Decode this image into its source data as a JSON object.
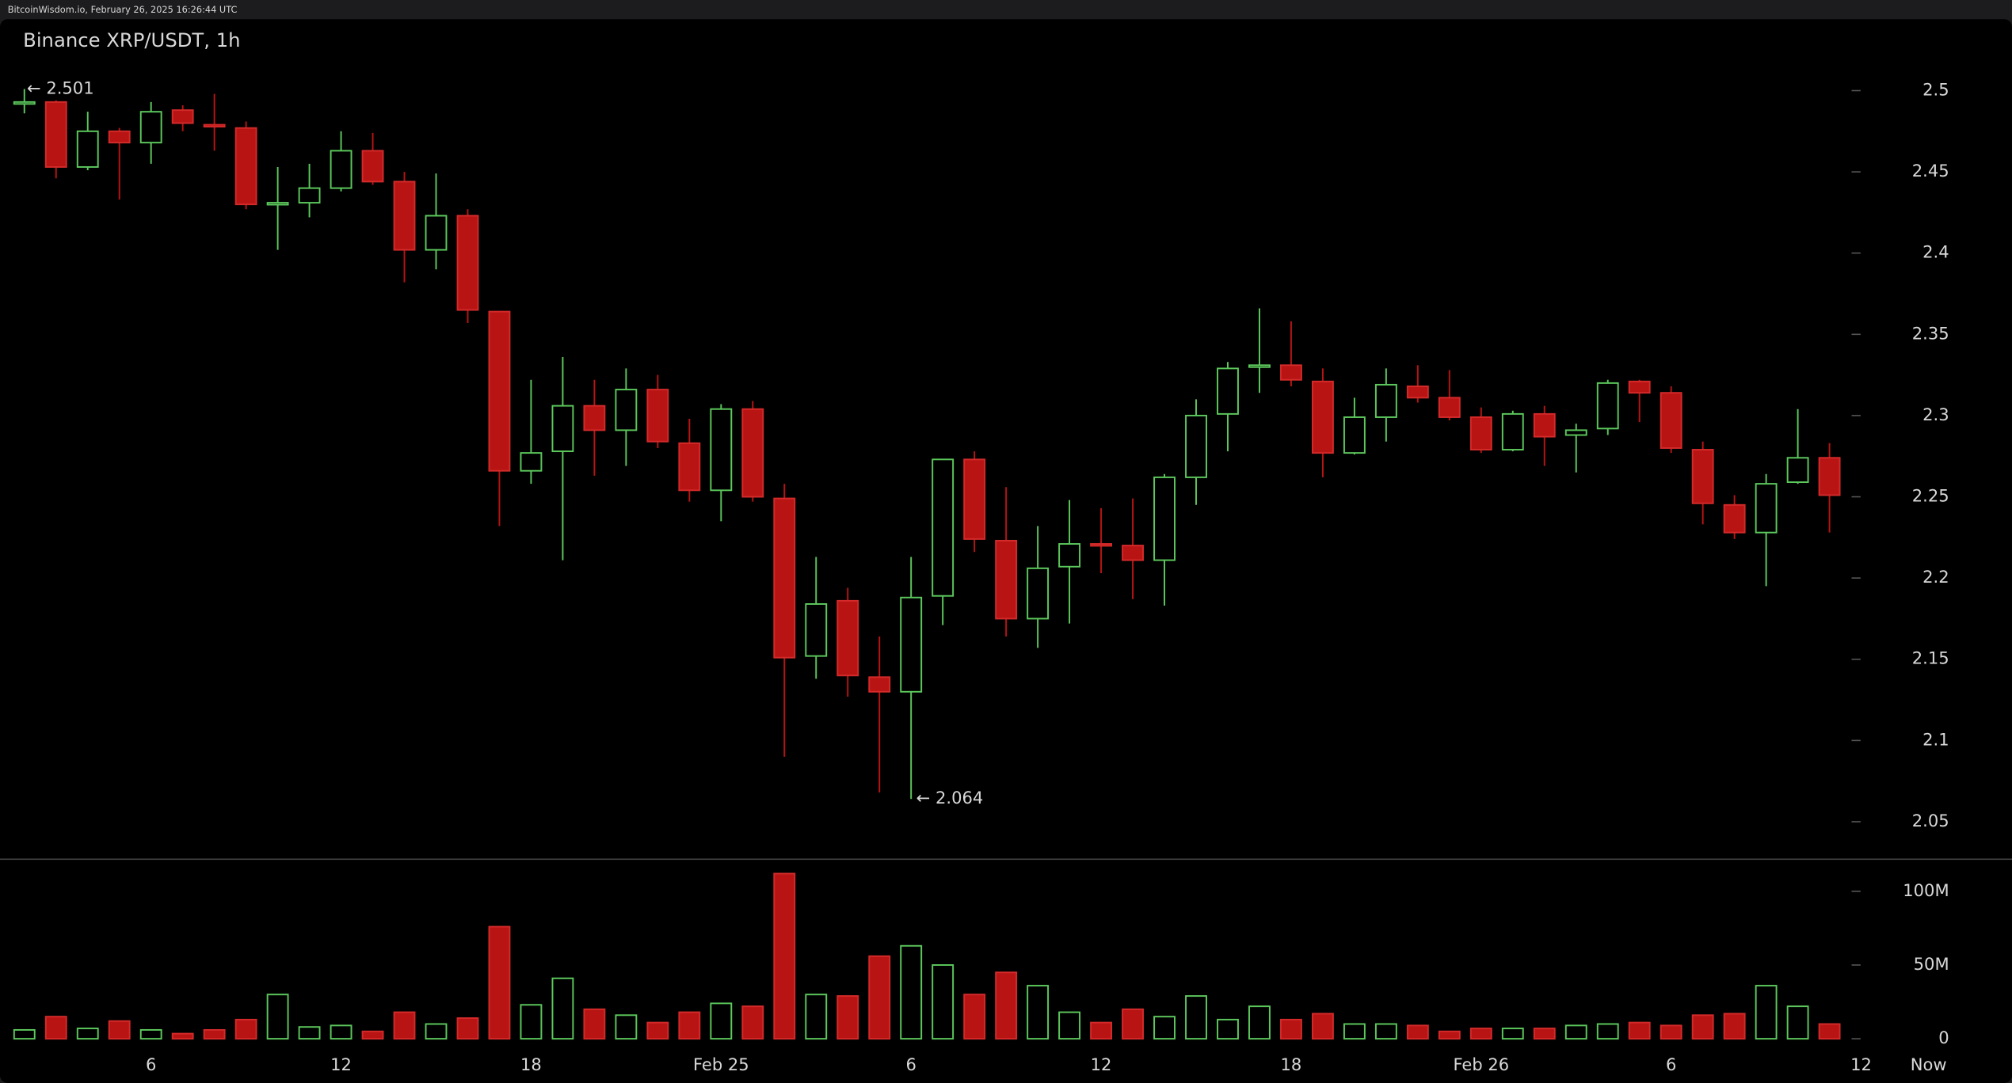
{
  "header": {
    "source": "BitcoinWisdom.io, February 26, 2025 16:26:44 UTC"
  },
  "chart_data": {
    "type": "candlestick",
    "title": "Binance XRP/USDT, 1h",
    "x_labels": [
      "6",
      "12",
      "18",
      "Feb 25",
      "6",
      "12",
      "18",
      "Feb 26",
      "6",
      "12",
      "Now"
    ],
    "open": [
      2.492,
      2.493,
      2.453,
      2.475,
      2.468,
      2.488,
      2.479,
      2.477,
      2.43,
      2.431,
      2.44,
      2.463,
      2.444,
      2.402,
      2.423,
      2.364,
      2.266,
      2.278,
      2.306,
      2.291,
      2.316,
      2.283,
      2.254,
      2.304,
      2.249,
      2.152,
      2.186,
      2.139,
      2.13,
      2.189,
      2.273,
      2.223,
      2.175,
      2.207,
      2.221,
      2.22,
      2.211,
      2.262,
      2.301,
      2.33,
      2.331,
      2.321,
      2.277,
      2.299,
      2.318,
      2.311,
      2.299,
      2.279,
      2.301,
      2.288,
      2.292,
      2.321,
      2.314,
      2.279,
      2.245,
      2.228,
      2.259,
      2.274
    ],
    "high": [
      2.501,
      2.494,
      2.487,
      2.477,
      2.493,
      2.491,
      2.498,
      2.481,
      2.453,
      2.455,
      2.475,
      2.474,
      2.45,
      2.449,
      2.427,
      2.364,
      2.322,
      2.336,
      2.322,
      2.329,
      2.325,
      2.298,
      2.307,
      2.309,
      2.258,
      2.213,
      2.194,
      2.164,
      2.213,
      2.273,
      2.278,
      2.256,
      2.232,
      2.248,
      2.243,
      2.249,
      2.264,
      2.31,
      2.333,
      2.366,
      2.358,
      2.329,
      2.311,
      2.329,
      2.331,
      2.328,
      2.305,
      2.303,
      2.306,
      2.295,
      2.322,
      2.322,
      2.318,
      2.284,
      2.251,
      2.264,
      2.304,
      2.283
    ],
    "low": [
      2.486,
      2.446,
      2.451,
      2.433,
      2.455,
      2.475,
      2.463,
      2.427,
      2.402,
      2.422,
      2.438,
      2.442,
      2.382,
      2.39,
      2.357,
      2.232,
      2.258,
      2.211,
      2.263,
      2.269,
      2.28,
      2.247,
      2.235,
      2.247,
      2.09,
      2.138,
      2.127,
      2.068,
      2.064,
      2.171,
      2.216,
      2.164,
      2.157,
      2.172,
      2.203,
      2.187,
      2.183,
      2.245,
      2.278,
      2.314,
      2.318,
      2.262,
      2.276,
      2.284,
      2.308,
      2.297,
      2.277,
      2.278,
      2.269,
      2.265,
      2.288,
      2.296,
      2.277,
      2.233,
      2.224,
      2.195,
      2.258,
      2.228
    ],
    "close": [
      2.493,
      2.453,
      2.475,
      2.468,
      2.487,
      2.48,
      2.478,
      2.43,
      2.431,
      2.44,
      2.463,
      2.444,
      2.402,
      2.423,
      2.365,
      2.266,
      2.277,
      2.306,
      2.291,
      2.316,
      2.284,
      2.254,
      2.304,
      2.25,
      2.151,
      2.184,
      2.14,
      2.13,
      2.188,
      2.273,
      2.224,
      2.175,
      2.206,
      2.221,
      2.22,
      2.211,
      2.262,
      2.3,
      2.329,
      2.331,
      2.322,
      2.277,
      2.299,
      2.319,
      2.311,
      2.299,
      2.279,
      2.301,
      2.287,
      2.291,
      2.32,
      2.314,
      2.28,
      2.246,
      2.228,
      2.258,
      2.274,
      2.251
    ],
    "volume": [
      6000000,
      15000000,
      7000000,
      12000000,
      6000000,
      3500000,
      6000000,
      13000000,
      30000000,
      8000000,
      9000000,
      5000000,
      18000000,
      10000000,
      14000000,
      76000000,
      23000000,
      41000000,
      20000000,
      16000000,
      11000000,
      18000000,
      24000000,
      22000000,
      112000000,
      30000000,
      29000000,
      56000000,
      63000000,
      50000000,
      30000000,
      45000000,
      36000000,
      18000000,
      11000000,
      20000000,
      15000000,
      29000000,
      13000000,
      22000000,
      13000000,
      17000000,
      10000000,
      10000000,
      9000000,
      5000000,
      7000000,
      7000000,
      7000000,
      9000000,
      10000000,
      11000000,
      9000000,
      16000000,
      17000000,
      36000000,
      22000000,
      10000000
    ],
    "up_color": "#5cc95c",
    "down_color": "#b81414",
    "ylim": [
      2.0285,
      2.54
    ],
    "yticks": [
      2.05,
      2.1,
      2.15,
      2.2,
      2.25,
      2.3,
      2.35,
      2.4,
      2.45,
      2.5
    ],
    "volume_ylim": [
      0,
      120000000
    ],
    "volume_ticks": [
      0,
      {
        "value": 50000000,
        "label": "50M"
      },
      {
        "value": 100000000,
        "label": "100M"
      }
    ],
    "annotations": [
      {
        "text": "← 2.501",
        "value": 2.501
      },
      {
        "text": "← 2.064",
        "value": 2.064
      }
    ]
  }
}
